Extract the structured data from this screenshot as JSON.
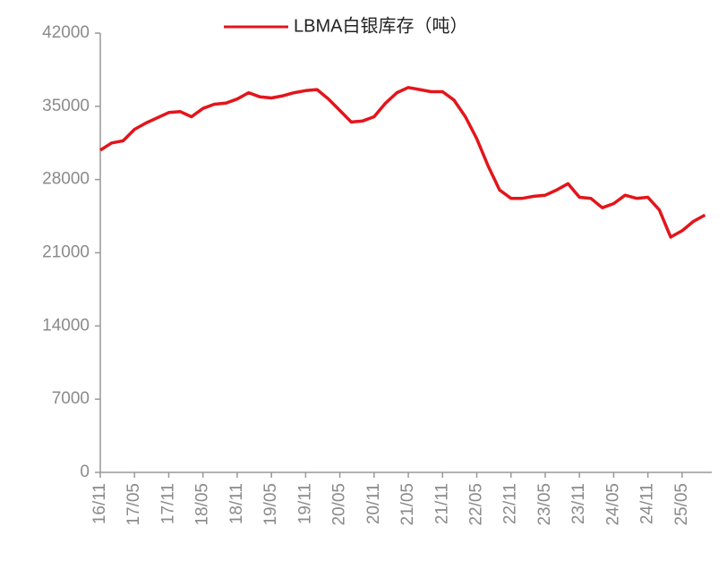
{
  "chart_data": {
    "type": "line",
    "title": "LBMA白银库存（吨）",
    "categories": [
      "16/11",
      null,
      null,
      "17/05",
      null,
      null,
      "17/11",
      null,
      null,
      "18/05",
      null,
      null,
      "18/11",
      null,
      null,
      "19/05",
      null,
      null,
      "19/11",
      null,
      null,
      "20/05",
      null,
      null,
      "20/11",
      null,
      null,
      "21/05",
      null,
      null,
      "21/11",
      null,
      null,
      "22/05",
      null,
      null,
      "22/11",
      null,
      null,
      "23/05",
      null,
      null,
      "23/11",
      null,
      null,
      "24/05",
      null,
      null,
      "24/11",
      null,
      null,
      "25/05",
      null,
      null
    ],
    "series": [
      {
        "name": "LBMA白银库存（吨）",
        "color": "#e3151b",
        "values": [
          30800,
          31500,
          31700,
          32800,
          33400,
          33900,
          34400,
          34500,
          34000,
          34800,
          35200,
          35300,
          35700,
          36300,
          35900,
          35800,
          36000,
          36300,
          36500,
          36600,
          35700,
          34600,
          33500,
          33600,
          34000,
          35300,
          36300,
          36800,
          36600,
          36400,
          36400,
          35600,
          34000,
          31900,
          29300,
          27000,
          26200,
          26200,
          26400,
          26500,
          27000,
          27600,
          26300,
          26200,
          25300,
          25700,
          26500,
          26200,
          26300,
          25100,
          22500,
          23100,
          24000,
          24600
        ]
      }
    ],
    "ylim": [
      0,
      42000
    ],
    "yticks": [
      0,
      7000,
      14000,
      21000,
      28000,
      35000,
      42000
    ],
    "legend": "top"
  }
}
